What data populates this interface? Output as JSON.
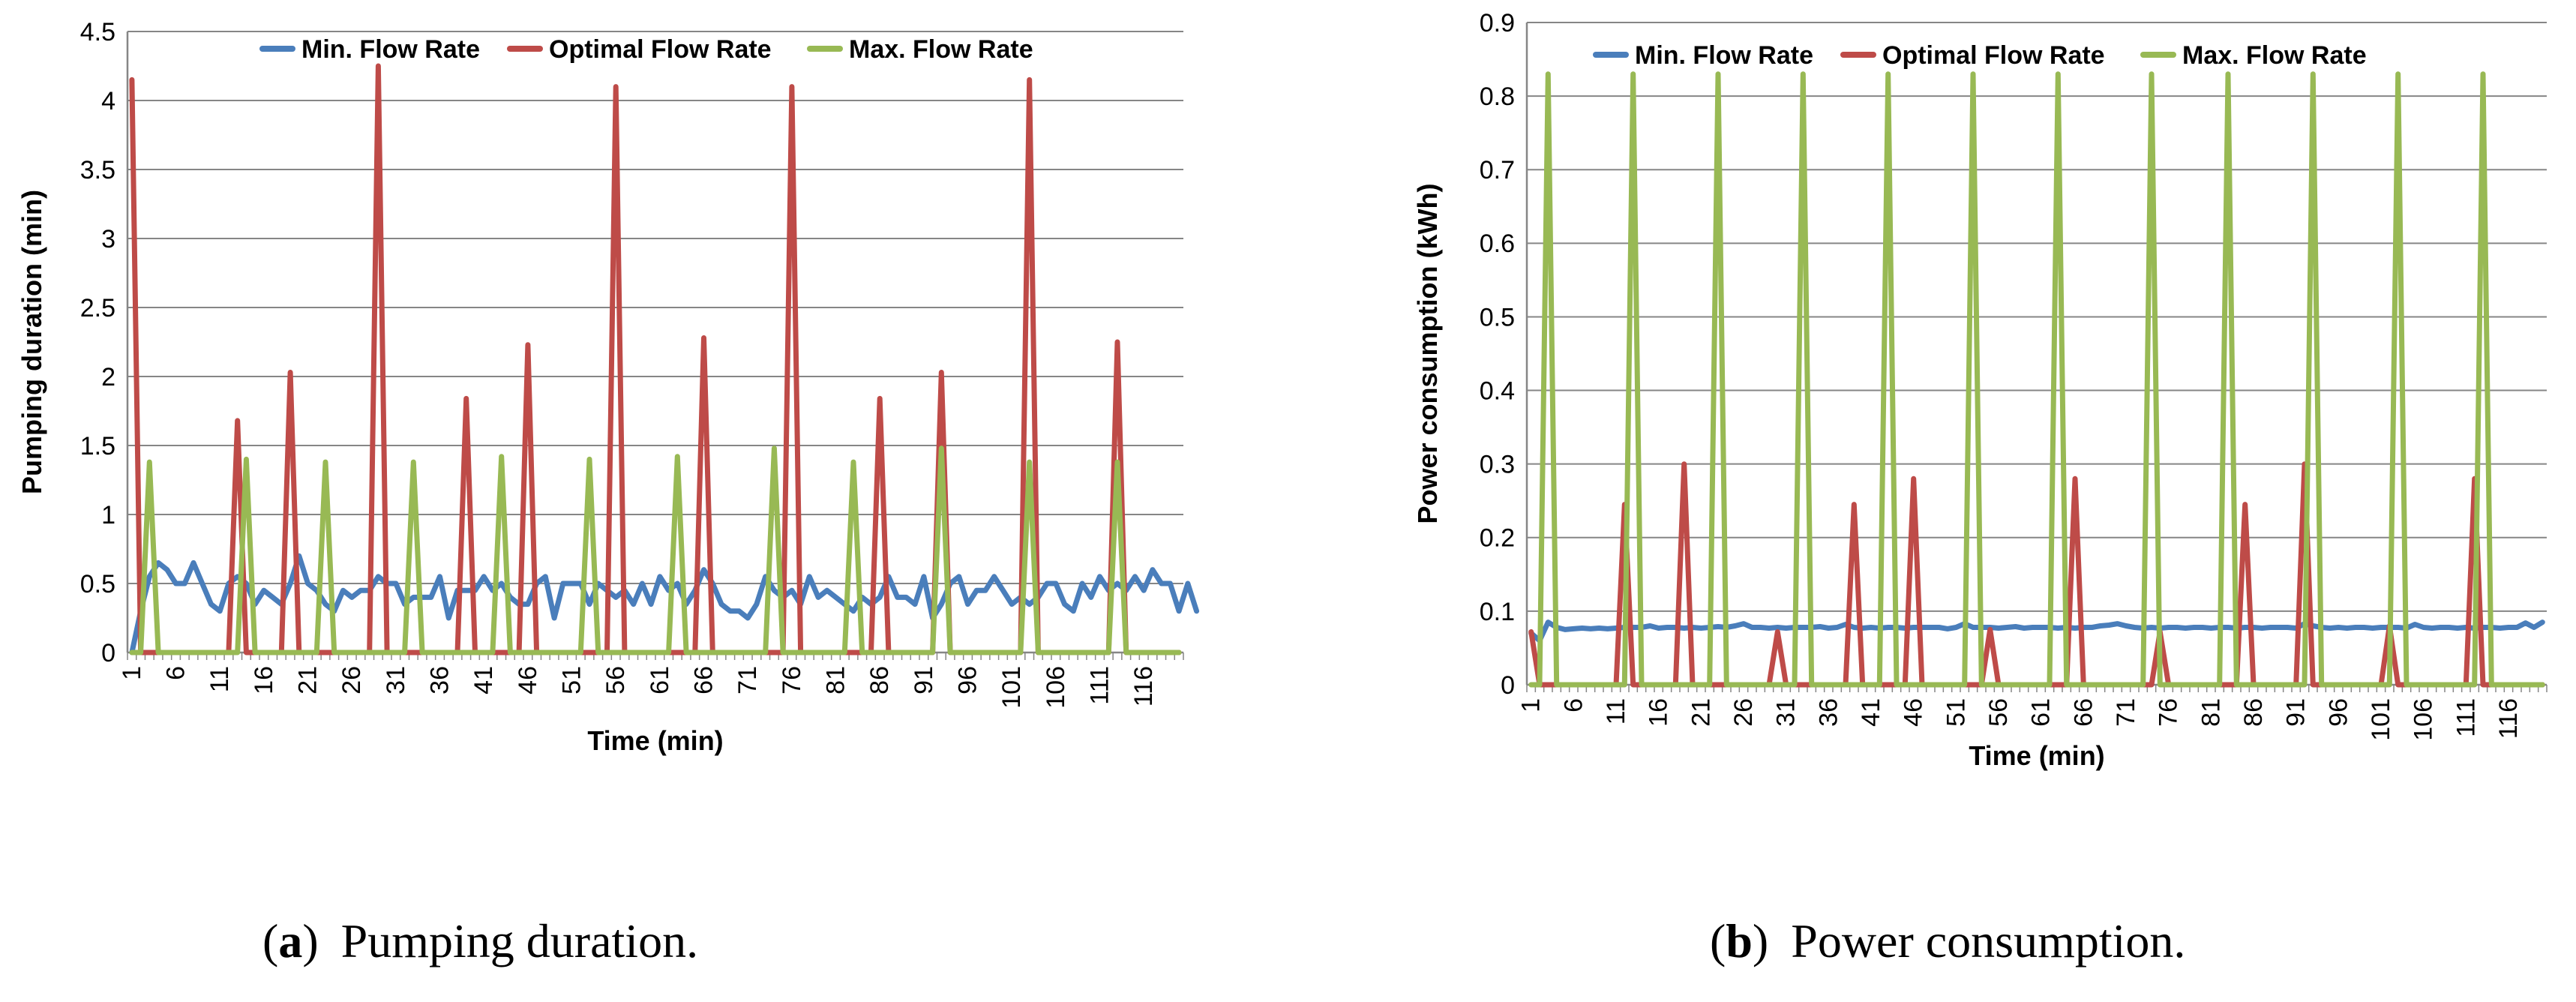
{
  "colors": {
    "min": "#4A7EBB",
    "optimal": "#BE4B48",
    "max": "#98B954",
    "grid": "#868686",
    "axis": "#868686",
    "text": "#000000"
  },
  "legend": {
    "min": "Min. Flow Rate",
    "optimal": "Optimal Flow Rate",
    "max": "Max. Flow Rate"
  },
  "captions": [
    {
      "open": "(",
      "tag": "a",
      "close": ")",
      "text": "Pumping duration."
    },
    {
      "open": "(",
      "tag": "b",
      "close": ")",
      "text": "Power consumption."
    }
  ],
  "chart_data": [
    {
      "type": "line",
      "title": "",
      "xlabel": "Time (min)",
      "ylabel": "Pumping duration (min)",
      "ylim": [
        0,
        4.5
      ],
      "yticks": [
        "0",
        "0.5",
        "1",
        "1.5",
        "2",
        "2.5",
        "3",
        "3.5",
        "4",
        "4.5"
      ],
      "xticks": [
        "1",
        "6",
        "11",
        "16",
        "21",
        "26",
        "31",
        "36",
        "41",
        "46",
        "51",
        "56",
        "61",
        "66",
        "71",
        "76",
        "81",
        "86",
        "91",
        "96",
        "101",
        "106",
        "111",
        "116"
      ],
      "x": {
        "start": 1,
        "end": 120
      },
      "legend_position": "top-center",
      "grid": "horizontal",
      "series": [
        {
          "key": "min",
          "name": "Min. Flow Rate",
          "values": [
            0,
            0.3,
            0.55,
            0.65,
            0.6,
            0.5,
            0.5,
            0.65,
            0.5,
            0.35,
            0.3,
            0.5,
            0.55,
            0.5,
            0.35,
            0.45,
            0.4,
            0.35,
            0.5,
            0.7,
            0.5,
            0.45,
            0.35,
            0.3,
            0.45,
            0.4,
            0.45,
            0.45,
            0.55,
            0.5,
            0.5,
            0.35,
            0.4,
            0.4,
            0.4,
            0.55,
            0.25,
            0.45,
            0.45,
            0.45,
            0.55,
            0.45,
            0.5,
            0.4,
            0.35,
            0.35,
            0.5,
            0.55,
            0.25,
            0.5,
            0.5,
            0.5,
            0.35,
            0.5,
            0.45,
            0.4,
            0.45,
            0.35,
            0.5,
            0.35,
            0.55,
            0.45,
            0.5,
            0.35,
            0.45,
            0.6,
            0.5,
            0.35,
            0.3,
            0.3,
            0.25,
            0.35,
            0.55,
            0.45,
            0.4,
            0.45,
            0.35,
            0.55,
            0.4,
            0.45,
            0.4,
            0.35,
            0.3,
            0.4,
            0.35,
            0.4,
            0.55,
            0.4,
            0.4,
            0.35,
            0.55,
            0.25,
            0.35,
            0.5,
            0.55,
            0.35,
            0.45,
            0.45,
            0.55,
            0.45,
            0.35,
            0.4,
            0.35,
            0.4,
            0.5,
            0.5,
            0.35,
            0.3,
            0.5,
            0.4,
            0.55,
            0.45,
            0.5,
            0.45,
            0.55,
            0.45,
            0.6,
            0.5,
            0.5,
            0.3,
            0.5,
            0.3
          ]
        },
        {
          "key": "optimal",
          "name": "Optimal Flow Rate",
          "peaks": [
            [
              1,
              4.15
            ],
            [
              13,
              1.68
            ],
            [
              19,
              2.03
            ],
            [
              29,
              4.25
            ],
            [
              39,
              1.84
            ],
            [
              46,
              2.23
            ],
            [
              56,
              4.1
            ],
            [
              66,
              2.28
            ],
            [
              76,
              4.1
            ],
            [
              86,
              1.84
            ],
            [
              93,
              2.03
            ],
            [
              103,
              4.15
            ],
            [
              113,
              2.25
            ]
          ]
        },
        {
          "key": "max",
          "name": "Max. Flow Rate",
          "peaks": [
            [
              3,
              1.38
            ],
            [
              14,
              1.4
            ],
            [
              23,
              1.38
            ],
            [
              33,
              1.38
            ],
            [
              43,
              1.42
            ],
            [
              53,
              1.4
            ],
            [
              63,
              1.42
            ],
            [
              74,
              1.48
            ],
            [
              83,
              1.38
            ],
            [
              93,
              1.48
            ],
            [
              103,
              1.38
            ],
            [
              113,
              1.38
            ]
          ]
        }
      ]
    },
    {
      "type": "line",
      "title": "",
      "xlabel": "Time (min)",
      "ylabel": "Power consumption (kWh)",
      "ylim": [
        0,
        0.9
      ],
      "yticks": [
        "0",
        "0.1",
        "0.2",
        "0.3",
        "0.4",
        "0.5",
        "0.6",
        "0.7",
        "0.8",
        "0.9"
      ],
      "xticks": [
        "1",
        "6",
        "11",
        "16",
        "21",
        "26",
        "31",
        "36",
        "41",
        "46",
        "51",
        "56",
        "61",
        "66",
        "71",
        "76",
        "81",
        "86",
        "91",
        "96",
        "101",
        "106",
        "111",
        "116"
      ],
      "x": {
        "start": 1,
        "end": 120
      },
      "legend_position": "top-center",
      "grid": "horizontal",
      "series": [
        {
          "key": "min",
          "name": "Min. Flow Rate",
          "values": [
            0.07,
            0.06,
            0.085,
            0.078,
            0.075,
            0.076,
            0.077,
            0.076,
            0.077,
            0.076,
            0.077,
            0.078,
            0.078,
            0.078,
            0.08,
            0.077,
            0.078,
            0.078,
            0.077,
            0.078,
            0.077,
            0.078,
            0.079,
            0.078,
            0.08,
            0.083,
            0.078,
            0.078,
            0.077,
            0.078,
            0.077,
            0.078,
            0.078,
            0.078,
            0.079,
            0.077,
            0.078,
            0.082,
            0.078,
            0.077,
            0.078,
            0.077,
            0.078,
            0.078,
            0.077,
            0.078,
            0.078,
            0.078,
            0.078,
            0.076,
            0.078,
            0.083,
            0.078,
            0.078,
            0.078,
            0.077,
            0.078,
            0.079,
            0.077,
            0.078,
            0.078,
            0.078,
            0.077,
            0.078,
            0.077,
            0.078,
            0.078,
            0.08,
            0.081,
            0.083,
            0.08,
            0.078,
            0.077,
            0.078,
            0.077,
            0.078,
            0.078,
            0.077,
            0.078,
            0.078,
            0.077,
            0.078,
            0.078,
            0.077,
            0.078,
            0.078,
            0.077,
            0.078,
            0.078,
            0.078,
            0.077,
            0.083,
            0.08,
            0.078,
            0.077,
            0.078,
            0.077,
            0.078,
            0.078,
            0.077,
            0.078,
            0.078,
            0.078,
            0.077,
            0.082,
            0.078,
            0.077,
            0.078,
            0.078,
            0.077,
            0.078,
            0.077,
            0.078,
            0.078,
            0.077,
            0.078,
            0.078,
            0.084,
            0.078,
            0.085
          ]
        },
        {
          "key": "optimal",
          "name": "Optimal Flow Rate",
          "peaks": [
            [
              1,
              0.072
            ],
            [
              12,
              0.245
            ],
            [
              19,
              0.3
            ],
            [
              30,
              0.072
            ],
            [
              39,
              0.245
            ],
            [
              46,
              0.28
            ],
            [
              55,
              0.075
            ],
            [
              65,
              0.28
            ],
            [
              75,
              0.072
            ],
            [
              85,
              0.245
            ],
            [
              92,
              0.3
            ],
            [
              102,
              0.08
            ],
            [
              112,
              0.28
            ]
          ]
        },
        {
          "key": "max",
          "name": "Max. Flow Rate",
          "peaks": [
            [
              3,
              0.83
            ],
            [
              13,
              0.83
            ],
            [
              23,
              0.83
            ],
            [
              33,
              0.83
            ],
            [
              43,
              0.83
            ],
            [
              53,
              0.83
            ],
            [
              63,
              0.83
            ],
            [
              74,
              0.83
            ],
            [
              83,
              0.83
            ],
            [
              93,
              0.83
            ],
            [
              103,
              0.83
            ],
            [
              113,
              0.83
            ]
          ]
        }
      ]
    }
  ]
}
